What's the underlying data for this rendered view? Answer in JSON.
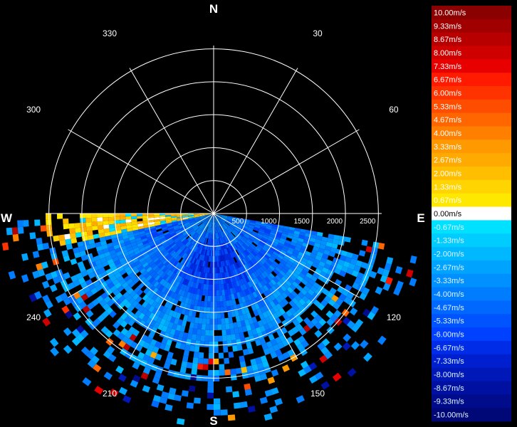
{
  "chart_data": {
    "type": "polar-radial-velocity",
    "cardinals": {
      "north": "N",
      "east": "E",
      "south": "S",
      "west": "W"
    },
    "azimuth_labels": [
      {
        "deg": 30,
        "label": "30"
      },
      {
        "deg": 60,
        "label": "60"
      },
      {
        "deg": 120,
        "label": "120"
      },
      {
        "deg": 150,
        "label": "150"
      },
      {
        "deg": 210,
        "label": "210"
      },
      {
        "deg": 240,
        "label": "240"
      },
      {
        "deg": 300,
        "label": "300"
      },
      {
        "deg": 330,
        "label": "330"
      }
    ],
    "range_rings": [
      500,
      1000,
      1500,
      2000,
      2500
    ],
    "range_labels": [
      "500",
      "1000",
      "1500",
      "2000",
      "2500"
    ],
    "range_max": 2550,
    "scan_sector": {
      "start_deg": 100,
      "end_deg": 270
    },
    "colorbar": [
      {
        "value": 10.0,
        "label": "10.00m/s",
        "color": "#8b0000"
      },
      {
        "value": 9.33,
        "label": "9.33m/s",
        "color": "#a10000"
      },
      {
        "value": 8.67,
        "label": "8.67m/s",
        "color": "#b80000"
      },
      {
        "value": 8.0,
        "label": "8.00m/s",
        "color": "#cf0000"
      },
      {
        "value": 7.33,
        "label": "7.33m/s",
        "color": "#e80000"
      },
      {
        "value": 6.67,
        "label": "6.67m/s",
        "color": "#ff1a00"
      },
      {
        "value": 6.0,
        "label": "6.00m/s",
        "color": "#ff3300"
      },
      {
        "value": 5.33,
        "label": "5.33m/s",
        "color": "#ff4d00"
      },
      {
        "value": 4.67,
        "label": "4.67m/s",
        "color": "#ff6600"
      },
      {
        "value": 4.0,
        "label": "4.00m/s",
        "color": "#ff8000"
      },
      {
        "value": 3.33,
        "label": "3.33m/s",
        "color": "#ff9900"
      },
      {
        "value": 2.67,
        "label": "2.67m/s",
        "color": "#ffaa00"
      },
      {
        "value": 2.0,
        "label": "2.00m/s",
        "color": "#ffbf00"
      },
      {
        "value": 1.33,
        "label": "1.33m/s",
        "color": "#ffd400"
      },
      {
        "value": 0.67,
        "label": "0.67m/s",
        "color": "#ffe800"
      },
      {
        "value": 0.0,
        "label": "0.00m/s",
        "color": "#ffffff"
      },
      {
        "value": -0.67,
        "label": "-0.67m/s",
        "color": "#00e0ff"
      },
      {
        "value": -1.33,
        "label": "-1.33m/s",
        "color": "#00ccff"
      },
      {
        "value": -2.0,
        "label": "-2.00m/s",
        "color": "#00b8ff"
      },
      {
        "value": -2.67,
        "label": "-2.67m/s",
        "color": "#00a4ff"
      },
      {
        "value": -3.33,
        "label": "-3.33m/s",
        "color": "#0090ff"
      },
      {
        "value": -4.0,
        "label": "-4.00m/s",
        "color": "#007cff"
      },
      {
        "value": -4.67,
        "label": "-4.67m/s",
        "color": "#0068ff"
      },
      {
        "value": -5.33,
        "label": "-5.33m/s",
        "color": "#0054ff"
      },
      {
        "value": -6.0,
        "label": "-6.00m/s",
        "color": "#0040ff"
      },
      {
        "value": -6.67,
        "label": "-6.67m/s",
        "color": "#002ce8"
      },
      {
        "value": -7.33,
        "label": "-7.33m/s",
        "color": "#0020d0"
      },
      {
        "value": -8.0,
        "label": "-8.00m/s",
        "color": "#0018b8"
      },
      {
        "value": -8.67,
        "label": "-8.67m/s",
        "color": "#0010a0"
      },
      {
        "value": -9.33,
        "label": "-9.33m/s",
        "color": "#000c8c"
      },
      {
        "value": -10.0,
        "label": "-10.00m/s",
        "color": "#000878"
      }
    ]
  }
}
